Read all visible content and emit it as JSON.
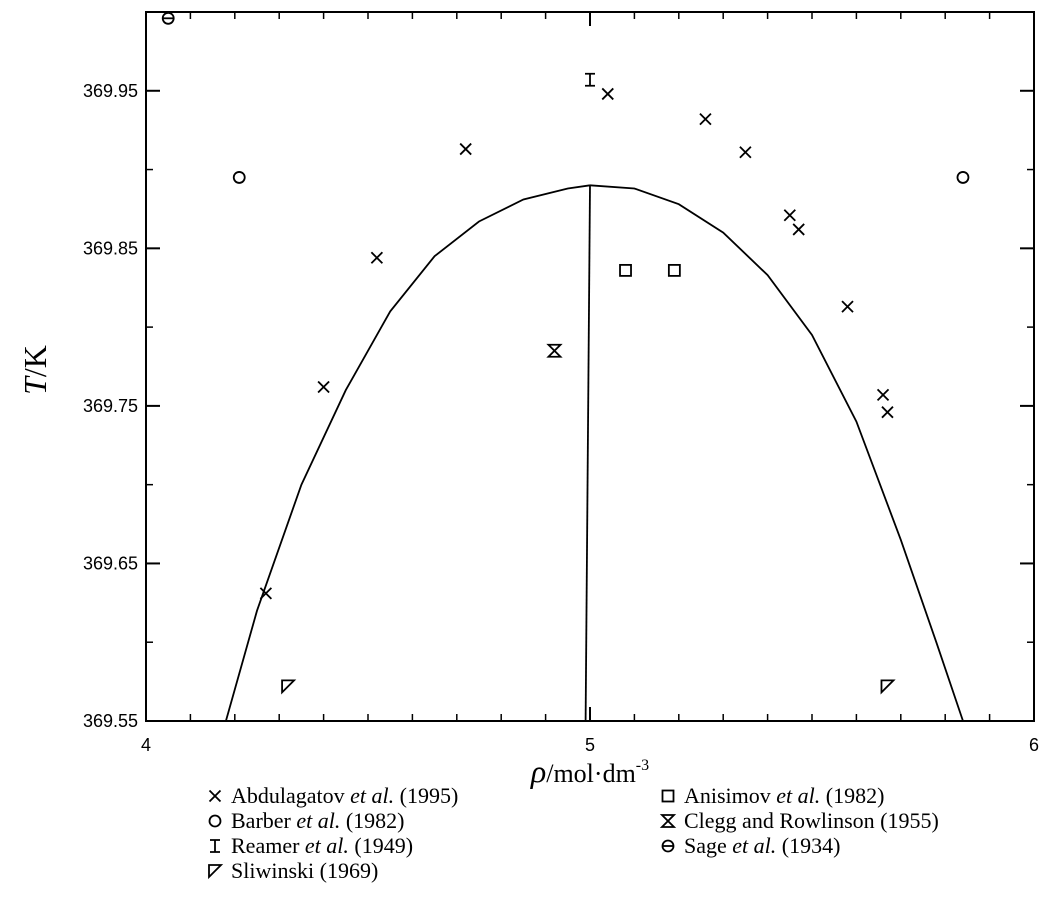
{
  "chart_data": {
    "type": "scatter",
    "xlabel_symbol": "ρ",
    "xlabel_unit": "/mol·dm",
    "xlabel_exp": "-3",
    "ylabel_symbol": "T",
    "ylabel_unit": "/K",
    "xlim": [
      4,
      6
    ],
    "ylim": [
      369.55,
      370.0
    ],
    "x_ticks": [
      4,
      5,
      6
    ],
    "x_tick_labels": [
      "4",
      "5",
      "6"
    ],
    "x_minor_ticks": [
      4.1,
      4.2,
      4.3,
      4.4,
      4.5,
      4.6,
      4.7,
      4.8,
      4.9,
      5.1,
      5.2,
      5.3,
      5.4,
      5.5,
      5.6,
      5.7,
      5.8,
      5.9
    ],
    "y_ticks": [
      369.55,
      369.65,
      369.75,
      369.85,
      369.95
    ],
    "y_tick_labels": [
      "369.55",
      "369.65",
      "369.75",
      "369.85",
      "369.95"
    ],
    "y_minor_ticks": [
      369.6,
      369.7,
      369.8,
      369.9,
      370.0
    ],
    "grid": false,
    "legend_position": "bottom",
    "curve": {
      "rho_c": 5.0,
      "T_c": 369.89,
      "left_x": [
        4.18,
        4.25,
        4.35,
        4.45,
        4.55,
        4.65,
        4.75,
        4.85,
        4.95,
        5.0
      ],
      "left_y": [
        369.55,
        369.62,
        369.7,
        369.76,
        369.81,
        369.845,
        369.867,
        369.881,
        369.888,
        369.89
      ],
      "right_x": [
        5.0,
        5.1,
        5.2,
        5.3,
        5.4,
        5.5,
        5.6,
        5.7,
        5.78,
        5.84
      ],
      "right_y": [
        369.89,
        369.888,
        369.878,
        369.86,
        369.833,
        369.795,
        369.74,
        369.665,
        369.6,
        369.55
      ],
      "diameter_x": [
        4.99,
        5.0
      ],
      "diameter_y": [
        369.55,
        369.89
      ]
    },
    "series": [
      {
        "name_parts": [
          "Abdulagatov ",
          "et al.",
          " (1995)"
        ],
        "marker": "x",
        "x": [
          4.27,
          4.4,
          4.52,
          4.72,
          5.04,
          5.26,
          5.35,
          5.45,
          5.47,
          5.58,
          5.66,
          5.67
        ],
        "y": [
          369.631,
          369.762,
          369.844,
          369.913,
          369.948,
          369.932,
          369.911,
          369.871,
          369.862,
          369.813,
          369.757,
          369.746
        ]
      },
      {
        "name_parts": [
          "Anisimov ",
          "et al.",
          " (1982)"
        ],
        "marker": "square",
        "x": [
          5.08,
          5.19
        ],
        "y": [
          369.836,
          369.836
        ]
      },
      {
        "name_parts": [
          "Barber ",
          "et al.",
          " (1982)"
        ],
        "marker": "circle",
        "x": [
          4.21,
          5.84
        ],
        "y": [
          369.895,
          369.895
        ]
      },
      {
        "name_parts": [
          "Clegg and Rowlinson (1955)"
        ],
        "marker": "hourglass",
        "x": [
          4.92
        ],
        "y": [
          369.785
        ]
      },
      {
        "name_parts": [
          "Reamer ",
          "et al.",
          " (1949)"
        ],
        "marker": "ibeam",
        "x": [
          5.0
        ],
        "y": [
          369.957
        ]
      },
      {
        "name_parts": [
          "Sage ",
          "et al.",
          " (1934)"
        ],
        "marker": "phi",
        "x": [
          4.05
        ],
        "y": [
          369.996
        ]
      },
      {
        "name_parts": [
          "Sliwinski (1969)"
        ],
        "marker": "tri",
        "x": [
          4.32,
          5.67
        ],
        "y": [
          369.572,
          369.572
        ]
      }
    ]
  }
}
